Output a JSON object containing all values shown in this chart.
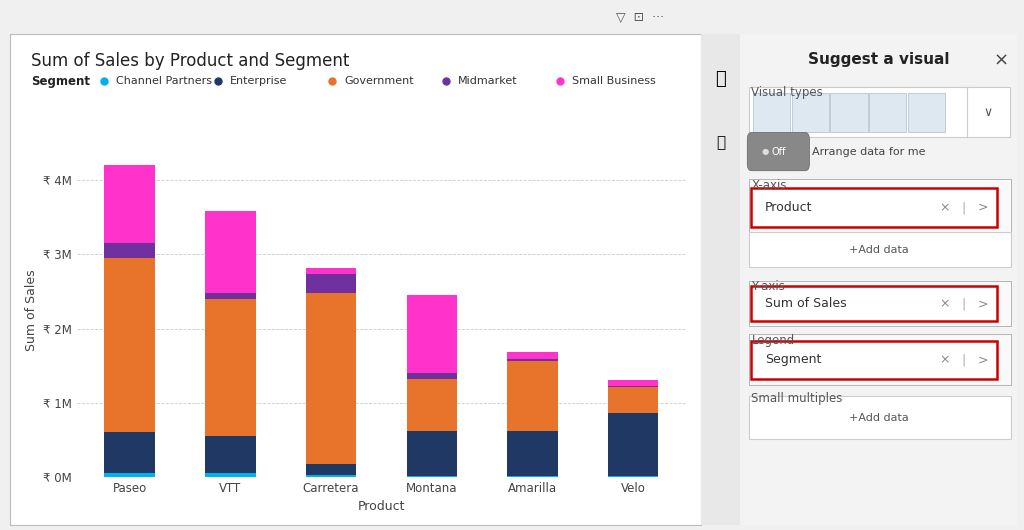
{
  "title": "Sum of Sales by Product and Segment",
  "xlabel": "Product",
  "ylabel": "Sum of Sales",
  "categories": [
    "Paseo",
    "VTT",
    "Carretera",
    "Montana",
    "Amarilla",
    "Velo"
  ],
  "segments": [
    "Channel Partners",
    "Enterprise",
    "Government",
    "Midmarket",
    "Small Business"
  ],
  "segment_colors": [
    "#00B0F0",
    "#1F3864",
    "#E8732A",
    "#7030A0",
    "#FF33CC"
  ],
  "data": {
    "Channel Partners": [
      50000,
      50000,
      30000,
      20000,
      20000,
      10000
    ],
    "Enterprise": [
      550000,
      500000,
      150000,
      600000,
      600000,
      850000
    ],
    "Government": [
      2350000,
      1850000,
      2300000,
      700000,
      950000,
      350000
    ],
    "Midmarket": [
      200000,
      80000,
      250000,
      80000,
      20000,
      10000
    ],
    "Small Business": [
      1050000,
      1100000,
      90000,
      1050000,
      100000,
      90000
    ]
  },
  "ytick_labels": [
    "₹ 0M",
    "₹ 1M",
    "₹ 2M",
    "₹ 3M",
    "₹ 4M"
  ],
  "ytick_values": [
    0,
    1000000,
    2000000,
    3000000,
    4000000
  ],
  "ylim": [
    0,
    4500000
  ],
  "chart_bg_color": "#FFFFFF",
  "grid_color": "#CCCCCC",
  "title_fontsize": 12,
  "axis_label_fontsize": 9,
  "tick_fontsize": 8.5,
  "legend_fontsize": 8.5,
  "bar_width": 0.5,
  "right_panel_bg": "#F3F3F3",
  "right_panel_title": "Suggest a visual",
  "sidebar_bg": "#E8E8E8"
}
